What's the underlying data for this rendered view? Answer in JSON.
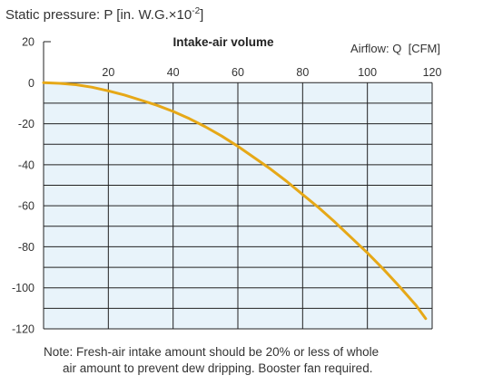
{
  "chart_data": {
    "type": "line",
    "title": "Intake-air volume",
    "xlabel": "Airflow: Q  [CFM]",
    "ylabel_prefix": "Static pressure: P [in. W.G.×10",
    "ylabel_exp": "-2",
    "ylabel_suffix": "]",
    "xlim": [
      0,
      120
    ],
    "ylim": [
      -120,
      20
    ],
    "x_ticks": [
      "20",
      "40",
      "60",
      "80",
      "100",
      "120"
    ],
    "y_ticks": [
      "20",
      "0",
      "-20",
      "-40",
      "-60",
      "-80",
      "-100",
      "-120"
    ],
    "grid": true,
    "plot_background": "#e8f3fa",
    "line_color": "#e6a817",
    "series": [
      {
        "x": [
          0,
          5,
          10,
          15,
          20,
          25,
          30,
          35,
          40,
          45,
          50,
          55,
          60,
          65,
          70,
          75,
          80,
          85,
          90,
          95,
          100,
          105,
          110,
          115,
          118
        ],
        "y": [
          0,
          -0.3,
          -1,
          -2.2,
          -4,
          -6,
          -8.5,
          -11,
          -14,
          -17.5,
          -21.5,
          -26,
          -31,
          -36.5,
          -42,
          -48,
          -54.5,
          -61,
          -68,
          -75.5,
          -83,
          -91,
          -99.5,
          -108.5,
          -115
        ]
      }
    ]
  },
  "note": {
    "line1": "Note: Fresh-air intake amount should be 20% or less of whole",
    "line2": "air amount to prevent dew dripping. Booster fan required."
  }
}
